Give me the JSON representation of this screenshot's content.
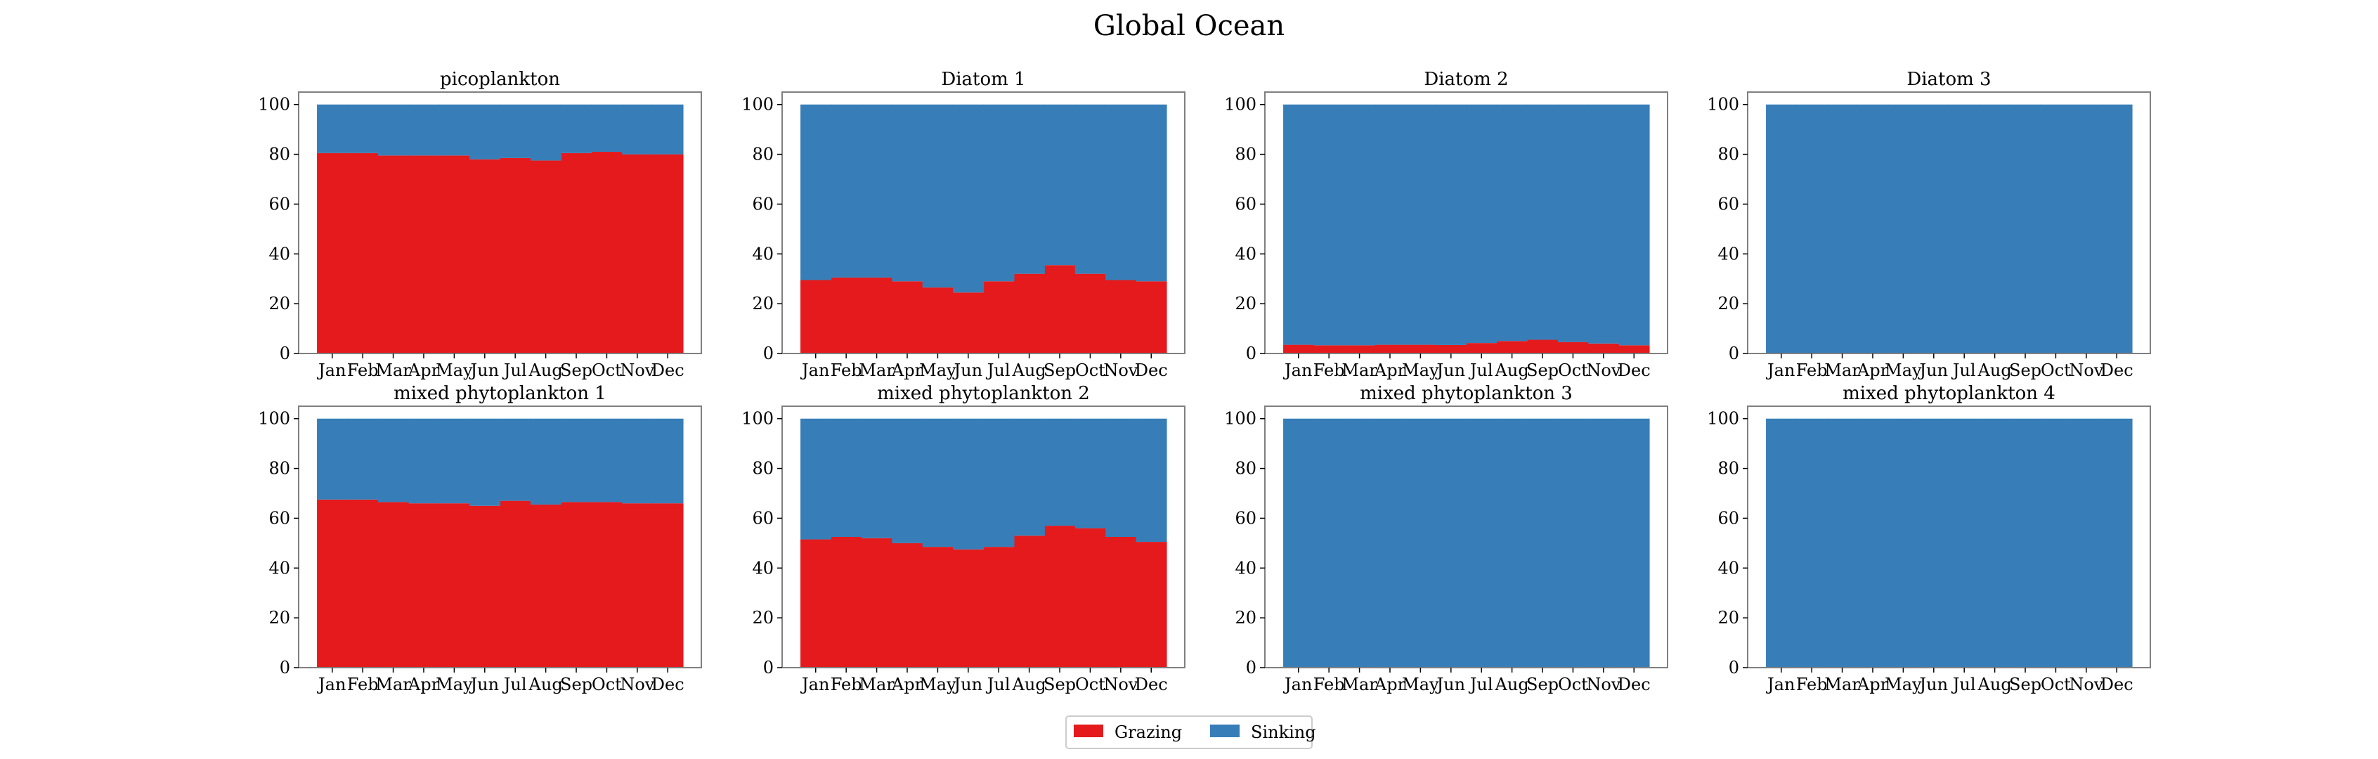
{
  "suptitle": "Global Ocean",
  "colors": {
    "grazing": "#e41a1c",
    "sinking": "#377eb8",
    "frame": "#808080",
    "legend_frame": "#cccccc"
  },
  "legend": {
    "placement": "bottom-center",
    "entries": [
      "Grazing",
      "Sinking"
    ]
  },
  "chart_data": [
    {
      "type": "bar",
      "stacked": true,
      "title": "picoplankton",
      "categories": [
        "Jan",
        "Feb",
        "Mar",
        "Apr",
        "May",
        "Jun",
        "Jul",
        "Aug",
        "Sep",
        "Oct",
        "Nov",
        "Dec"
      ],
      "ylim": [
        0,
        105
      ],
      "yticks": [
        0,
        20,
        40,
        60,
        80,
        100
      ],
      "grid": false,
      "series": [
        {
          "name": "Grazing",
          "values": [
            80.5,
            80.5,
            79.5,
            79.5,
            79.5,
            78,
            78.5,
            77.5,
            80.5,
            81,
            80,
            80
          ]
        },
        {
          "name": "Sinking",
          "values": [
            19.5,
            19.5,
            20.5,
            20.5,
            20.5,
            22,
            21.5,
            22.5,
            19.5,
            19,
            20,
            20
          ]
        }
      ]
    },
    {
      "type": "bar",
      "stacked": true,
      "title": "Diatom 1",
      "categories": [
        "Jan",
        "Feb",
        "Mar",
        "Apr",
        "May",
        "Jun",
        "Jul",
        "Aug",
        "Sep",
        "Oct",
        "Nov",
        "Dec"
      ],
      "ylim": [
        0,
        105
      ],
      "yticks": [
        0,
        20,
        40,
        60,
        80,
        100
      ],
      "grid": false,
      "series": [
        {
          "name": "Grazing",
          "values": [
            29.5,
            30.5,
            30.5,
            29,
            26.5,
            24.5,
            29,
            32,
            35.5,
            32,
            29.5,
            29
          ]
        },
        {
          "name": "Sinking",
          "values": [
            70.5,
            69.5,
            69.5,
            71,
            73.5,
            75.5,
            71,
            68,
            64.5,
            68,
            70.5,
            71
          ]
        }
      ]
    },
    {
      "type": "bar",
      "stacked": true,
      "title": "Diatom 2",
      "categories": [
        "Jan",
        "Feb",
        "Mar",
        "Apr",
        "May",
        "Jun",
        "Jul",
        "Aug",
        "Sep",
        "Oct",
        "Nov",
        "Dec"
      ],
      "ylim": [
        0,
        105
      ],
      "yticks": [
        0,
        20,
        40,
        60,
        80,
        100
      ],
      "grid": false,
      "series": [
        {
          "name": "Grazing",
          "values": [
            3.5,
            3.3,
            3.3,
            3.5,
            3.5,
            3.4,
            4.2,
            5,
            5.5,
            4.6,
            4,
            3.3
          ]
        },
        {
          "name": "Sinking",
          "values": [
            96.5,
            96.7,
            96.7,
            96.5,
            96.5,
            96.6,
            95.8,
            95,
            94.5,
            95.4,
            96,
            96.7
          ]
        }
      ]
    },
    {
      "type": "bar",
      "stacked": true,
      "title": "Diatom 3",
      "categories": [
        "Jan",
        "Feb",
        "Mar",
        "Apr",
        "May",
        "Jun",
        "Jul",
        "Aug",
        "Sep",
        "Oct",
        "Nov",
        "Dec"
      ],
      "ylim": [
        0,
        105
      ],
      "yticks": [
        0,
        20,
        40,
        60,
        80,
        100
      ],
      "grid": false,
      "series": [
        {
          "name": "Grazing",
          "values": [
            0.2,
            0.2,
            0.2,
            0.2,
            0.2,
            0.2,
            0.2,
            0.2,
            0.2,
            0.2,
            0.2,
            0.2
          ]
        },
        {
          "name": "Sinking",
          "values": [
            99.8,
            99.8,
            99.8,
            99.8,
            99.8,
            99.8,
            99.8,
            99.8,
            99.8,
            99.8,
            99.8,
            99.8
          ]
        }
      ]
    },
    {
      "type": "bar",
      "stacked": true,
      "title": "mixed phytoplankton 1",
      "categories": [
        "Jan",
        "Feb",
        "Mar",
        "Apr",
        "May",
        "Jun",
        "Jul",
        "Aug",
        "Sep",
        "Oct",
        "Nov",
        "Dec"
      ],
      "ylim": [
        0,
        105
      ],
      "yticks": [
        0,
        20,
        40,
        60,
        80,
        100
      ],
      "grid": false,
      "series": [
        {
          "name": "Grazing",
          "values": [
            67.5,
            67.5,
            66.5,
            66,
            66,
            65,
            67,
            65.5,
            66.5,
            66.5,
            66,
            66
          ]
        },
        {
          "name": "Sinking",
          "values": [
            32.5,
            32.5,
            33.5,
            34,
            34,
            35,
            33,
            34.5,
            33.5,
            33.5,
            34,
            34
          ]
        }
      ]
    },
    {
      "type": "bar",
      "stacked": true,
      "title": "mixed phytoplankton 2",
      "categories": [
        "Jan",
        "Feb",
        "Mar",
        "Apr",
        "May",
        "Jun",
        "Jul",
        "Aug",
        "Sep",
        "Oct",
        "Nov",
        "Dec"
      ],
      "ylim": [
        0,
        105
      ],
      "yticks": [
        0,
        20,
        40,
        60,
        80,
        100
      ],
      "grid": false,
      "series": [
        {
          "name": "Grazing",
          "values": [
            51.5,
            52.5,
            52,
            50,
            48.5,
            47.5,
            48.5,
            53,
            57,
            56,
            52.5,
            50.5
          ]
        },
        {
          "name": "Sinking",
          "values": [
            48.5,
            47.5,
            48,
            50,
            51.5,
            52.5,
            51.5,
            47,
            43,
            44,
            47.5,
            49.5
          ]
        }
      ]
    },
    {
      "type": "bar",
      "stacked": true,
      "title": "mixed phytoplankton 3",
      "categories": [
        "Jan",
        "Feb",
        "Mar",
        "Apr",
        "May",
        "Jun",
        "Jul",
        "Aug",
        "Sep",
        "Oct",
        "Nov",
        "Dec"
      ],
      "ylim": [
        0,
        105
      ],
      "yticks": [
        0,
        20,
        40,
        60,
        80,
        100
      ],
      "grid": false,
      "series": [
        {
          "name": "Grazing",
          "values": [
            0,
            0,
            0,
            0,
            0,
            0,
            0,
            0,
            0,
            0,
            0,
            0
          ]
        },
        {
          "name": "Sinking",
          "values": [
            100,
            100,
            100,
            100,
            100,
            100,
            100,
            100,
            100,
            100,
            100,
            100
          ]
        }
      ]
    },
    {
      "type": "bar",
      "stacked": true,
      "title": "mixed phytoplankton 4",
      "categories": [
        "Jan",
        "Feb",
        "Mar",
        "Apr",
        "May",
        "Jun",
        "Jul",
        "Aug",
        "Sep",
        "Oct",
        "Nov",
        "Dec"
      ],
      "ylim": [
        0,
        105
      ],
      "yticks": [
        0,
        20,
        40,
        60,
        80,
        100
      ],
      "grid": false,
      "series": [
        {
          "name": "Grazing",
          "values": [
            0,
            0,
            0,
            0,
            0,
            0,
            0,
            0,
            0,
            0,
            0,
            0
          ]
        },
        {
          "name": "Sinking",
          "values": [
            100,
            100,
            100,
            100,
            100,
            100,
            100,
            100,
            100,
            100,
            100,
            100
          ]
        }
      ]
    }
  ]
}
